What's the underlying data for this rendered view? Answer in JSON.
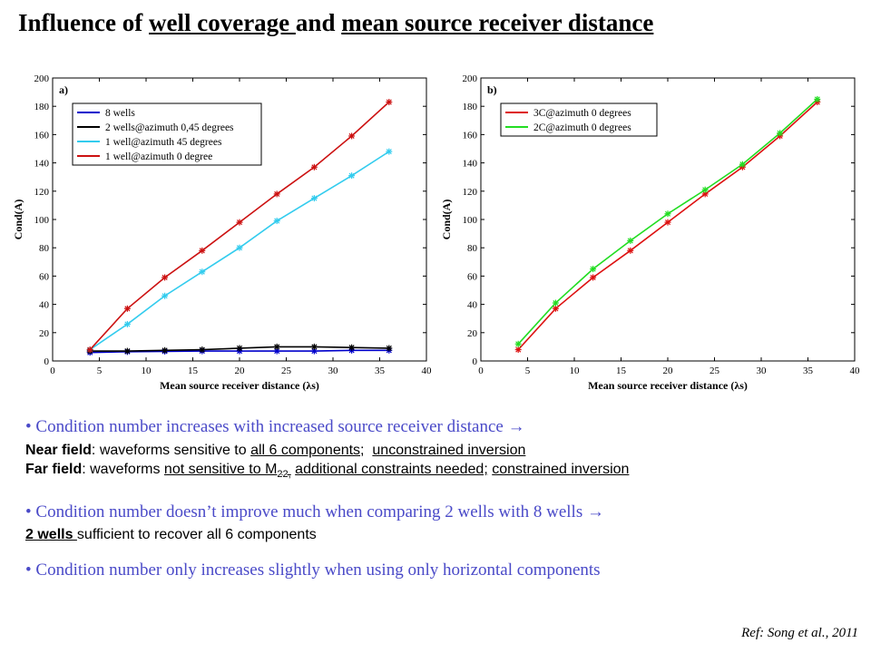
{
  "title": {
    "prefix": "Influence of ",
    "part1": "well coverage ",
    "mid": "and ",
    "part2": "mean source receiver distance"
  },
  "chart_data": [
    {
      "type": "line",
      "panel_label": "a)",
      "xlabel": "Mean source receiver distance (λs)",
      "ylabel": "Cond(A)",
      "xlim": [
        0,
        40
      ],
      "ylim": [
        0,
        200
      ],
      "xticks": [
        0,
        5,
        10,
        15,
        20,
        25,
        30,
        35,
        40
      ],
      "yticks": [
        0,
        20,
        40,
        60,
        80,
        100,
        120,
        140,
        160,
        180,
        200
      ],
      "legend_position": "top-left",
      "x": [
        4,
        8,
        12,
        16,
        20,
        24,
        28,
        32,
        36
      ],
      "series": [
        {
          "name": "8 wells",
          "color": "#0000CC",
          "values": [
            6,
            6.5,
            6.8,
            7,
            7,
            7,
            7,
            7.5,
            7.5
          ]
        },
        {
          "name": "2 wells@azimuth 0,45 degrees",
          "color": "#000000",
          "values": [
            7,
            7,
            7.5,
            8,
            9,
            10,
            10,
            9.5,
            9
          ]
        },
        {
          "name": "1 well@azimuth 45 degrees",
          "color": "#33CCEE",
          "values": [
            8,
            26,
            46,
            63,
            80,
            99,
            115,
            131,
            148
          ]
        },
        {
          "name": "1 well@azimuth 0 degree",
          "color": "#CC1111",
          "values": [
            8,
            37,
            59,
            78,
            98,
            118,
            137,
            159,
            183
          ]
        }
      ]
    },
    {
      "type": "line",
      "panel_label": "b)",
      "xlabel": "Mean source receiver distance (λs)",
      "ylabel": "Cond(A)",
      "xlim": [
        0,
        40
      ],
      "ylim": [
        0,
        200
      ],
      "xticks": [
        0,
        5,
        10,
        15,
        20,
        25,
        30,
        35,
        40
      ],
      "yticks": [
        0,
        20,
        40,
        60,
        80,
        100,
        120,
        140,
        160,
        180,
        200
      ],
      "legend_position": "top-left",
      "x": [
        4,
        8,
        12,
        16,
        20,
        24,
        28,
        32,
        36
      ],
      "series": [
        {
          "name": "3C@azimuth 0 degrees",
          "color": "#DD1111",
          "values": [
            8,
            37,
            59,
            78,
            98,
            118,
            137,
            159,
            183
          ]
        },
        {
          "name": "2C@azimuth 0 degrees",
          "color": "#22DD22",
          "values": [
            12,
            41,
            65,
            85,
            104,
            121,
            139,
            161,
            185
          ]
        }
      ]
    }
  ],
  "bullets": {
    "b1": {
      "text": "Condition number increases with increased source receiver distance",
      "arrow": "→"
    },
    "near": {
      "label": "Near field",
      "t1": ": waveforms sensitive to ",
      "u1": "all 6 components;",
      "t2": "  ",
      "u2": "unconstrained inversion"
    },
    "far": {
      "label": "Far field",
      "t1": ": waveforms ",
      "u1": "not sensitive to M",
      "sub": "22,",
      "t2": " ",
      "u2": "additional constraints needed;",
      "t3": " ",
      "u3": "constrained inversion"
    },
    "b2": {
      "text": "Condition number doesn’t improve much when comparing 2 wells with 8 wells",
      "arrow": "→"
    },
    "wells": {
      "u": "2 wells ",
      "t": "sufficient to recover all 6 components"
    },
    "b3": {
      "text": "Condition number only increases slightly when using only horizontal components"
    }
  },
  "ref": "Ref: Song et al., 2011"
}
